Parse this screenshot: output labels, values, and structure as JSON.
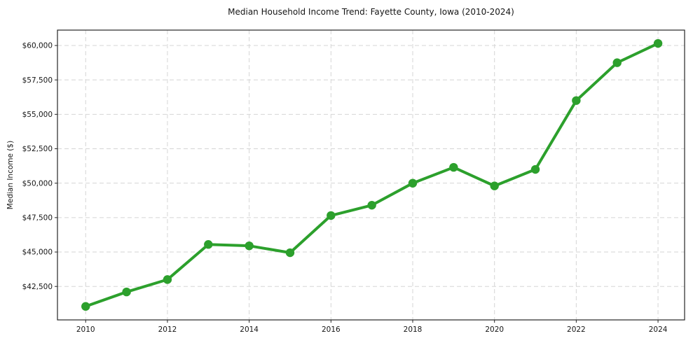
{
  "chart": {
    "title": "Median Household Income Trend: Fayette County, Iowa (2010-2024)",
    "ylabel": "Median Income ($)"
  },
  "chart_data": {
    "type": "line",
    "title": "Median Household Income Trend: Fayette County, Iowa (2010-2024)",
    "xlabel": "",
    "ylabel": "Median Income ($)",
    "series_name": "Median Household Income",
    "x": [
      2010,
      2011,
      2012,
      2013,
      2014,
      2015,
      2016,
      2017,
      2018,
      2019,
      2020,
      2021,
      2022,
      2023,
      2024
    ],
    "values": [
      41050,
      42100,
      43000,
      45550,
      45450,
      44950,
      47650,
      48400,
      50000,
      51150,
      49800,
      51000,
      56000,
      58750,
      60150
    ],
    "line_color": "#2ca02c",
    "marker": "circle",
    "marker_radius": 6.2,
    "grid": true,
    "legend_position": "none",
    "xlim": [
      2009.31,
      2024.65
    ],
    "ylim": [
      40070,
      61118
    ],
    "xticks": [
      2010,
      2012,
      2014,
      2016,
      2018,
      2020,
      2022,
      2024
    ],
    "xtick_labels": [
      "2010",
      "2012",
      "2014",
      "2016",
      "2018",
      "2020",
      "2022",
      "2024"
    ],
    "yticks": [
      42500,
      45000,
      47500,
      50000,
      52500,
      55000,
      57500,
      60000
    ],
    "ytick_labels": [
      "$42,500",
      "$45,000",
      "$47,500",
      "$50,000",
      "$52,500",
      "$55,000",
      "$57,500",
      "$60,000"
    ]
  }
}
